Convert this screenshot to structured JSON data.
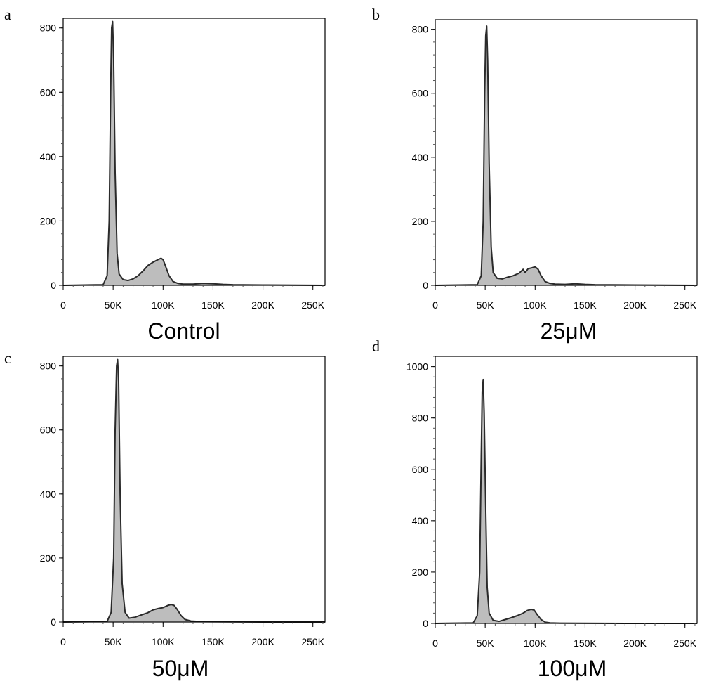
{
  "colors": {
    "frame": "#000000",
    "fill_main": "#bdbdbd",
    "fill_light": "#d9d9d9",
    "outline": "#2a2a2a",
    "tick": "#555555"
  },
  "chart_data": [
    {
      "type": "area",
      "panel_label": "a",
      "condition_label": "Control",
      "xlim": [
        0,
        262144
      ],
      "ylim": [
        0,
        830
      ],
      "x_ticks": [
        0,
        50000,
        100000,
        150000,
        200000,
        250000
      ],
      "x_tick_labels": [
        "0",
        "50K",
        "100K",
        "150K",
        "200K",
        "250K"
      ],
      "y_ticks": [
        0,
        200,
        400,
        600,
        800
      ],
      "y_tick_labels": [
        "0",
        "200",
        "400",
        "600",
        "800"
      ],
      "series": [
        {
          "x": [
            0,
            40000,
            44000,
            46000,
            47500,
            48500,
            49500,
            50500,
            52000,
            54000,
            56000,
            60000,
            65000,
            70000,
            75000,
            80000,
            85000,
            90000,
            95000,
            98000,
            100000,
            103000,
            106000,
            110000,
            115000,
            120000,
            130000,
            140000,
            150000,
            160000,
            170000,
            200000,
            262144
          ],
          "y": [
            0,
            2,
            30,
            200,
            600,
            800,
            820,
            700,
            350,
            100,
            35,
            18,
            15,
            20,
            30,
            45,
            62,
            72,
            80,
            84,
            80,
            55,
            30,
            12,
            6,
            4,
            4,
            6,
            5,
            3,
            2,
            1,
            0
          ]
        }
      ]
    },
    {
      "type": "area",
      "panel_label": "b",
      "condition_label": "25μM",
      "xlim": [
        0,
        262144
      ],
      "ylim": [
        0,
        830
      ],
      "x_ticks": [
        0,
        50000,
        100000,
        150000,
        200000,
        250000
      ],
      "x_tick_labels": [
        "0",
        "50K",
        "100K",
        "150K",
        "200K",
        "250K"
      ],
      "y_ticks": [
        0,
        200,
        400,
        600,
        800
      ],
      "y_tick_labels": [
        "0",
        "200",
        "400",
        "600",
        "800"
      ],
      "series": [
        {
          "x": [
            0,
            42000,
            46000,
            48000,
            49500,
            50500,
            51500,
            52500,
            54000,
            56000,
            58000,
            62000,
            67000,
            72000,
            78000,
            84000,
            88000,
            90000,
            93000,
            97000,
            100000,
            103000,
            106000,
            110000,
            115000,
            120000,
            130000,
            140000,
            150000,
            160000,
            200000,
            262144
          ],
          "y": [
            0,
            2,
            30,
            200,
            600,
            780,
            810,
            700,
            380,
            120,
            40,
            22,
            20,
            25,
            30,
            38,
            50,
            40,
            52,
            55,
            58,
            50,
            30,
            12,
            6,
            4,
            3,
            5,
            3,
            2,
            1,
            0
          ]
        }
      ]
    },
    {
      "type": "area",
      "panel_label": "c",
      "condition_label": "50μM",
      "xlim": [
        0,
        262144
      ],
      "ylim": [
        0,
        830
      ],
      "x_ticks": [
        0,
        50000,
        100000,
        150000,
        200000,
        250000
      ],
      "x_tick_labels": [
        "0",
        "50K",
        "100K",
        "150K",
        "200K",
        "250K"
      ],
      "y_ticks": [
        0,
        200,
        400,
        600,
        800
      ],
      "y_tick_labels": [
        "0",
        "200",
        "400",
        "600",
        "800"
      ],
      "series": [
        {
          "x": [
            0,
            44000,
            48000,
            50500,
            52000,
            53500,
            54500,
            55500,
            57000,
            59000,
            62000,
            66000,
            72000,
            78000,
            84000,
            90000,
            95000,
            100000,
            105000,
            108000,
            111000,
            114000,
            118000,
            122000,
            128000,
            140000,
            200000,
            262144
          ],
          "y": [
            0,
            2,
            30,
            200,
            600,
            800,
            820,
            750,
            400,
            120,
            30,
            12,
            15,
            22,
            28,
            38,
            42,
            45,
            52,
            55,
            52,
            40,
            20,
            8,
            3,
            1,
            0,
            0
          ]
        }
      ]
    },
    {
      "type": "area",
      "panel_label": "d",
      "condition_label": "100μM",
      "xlim": [
        0,
        262144
      ],
      "ylim": [
        0,
        1040
      ],
      "x_ticks": [
        0,
        50000,
        100000,
        150000,
        200000,
        250000
      ],
      "x_tick_labels": [
        "0",
        "50K",
        "100K",
        "150K",
        "200K",
        "250K"
      ],
      "y_ticks": [
        0,
        200,
        400,
        600,
        800,
        1000
      ],
      "y_tick_labels": [
        "0",
        "200",
        "400",
        "600",
        "800",
        "1000"
      ],
      "series": [
        {
          "x": [
            0,
            38000,
            42000,
            44500,
            46000,
            47000,
            48000,
            49000,
            50500,
            52000,
            54000,
            58000,
            64000,
            70000,
            76000,
            82000,
            88000,
            92000,
            96000,
            99000,
            102000,
            106000,
            110000,
            115000,
            125000,
            200000,
            262144
          ],
          "y": [
            0,
            2,
            30,
            200,
            650,
            900,
            950,
            820,
            450,
            140,
            40,
            12,
            8,
            15,
            22,
            30,
            40,
            50,
            55,
            52,
            35,
            15,
            5,
            2,
            1,
            0,
            0
          ]
        }
      ]
    }
  ]
}
